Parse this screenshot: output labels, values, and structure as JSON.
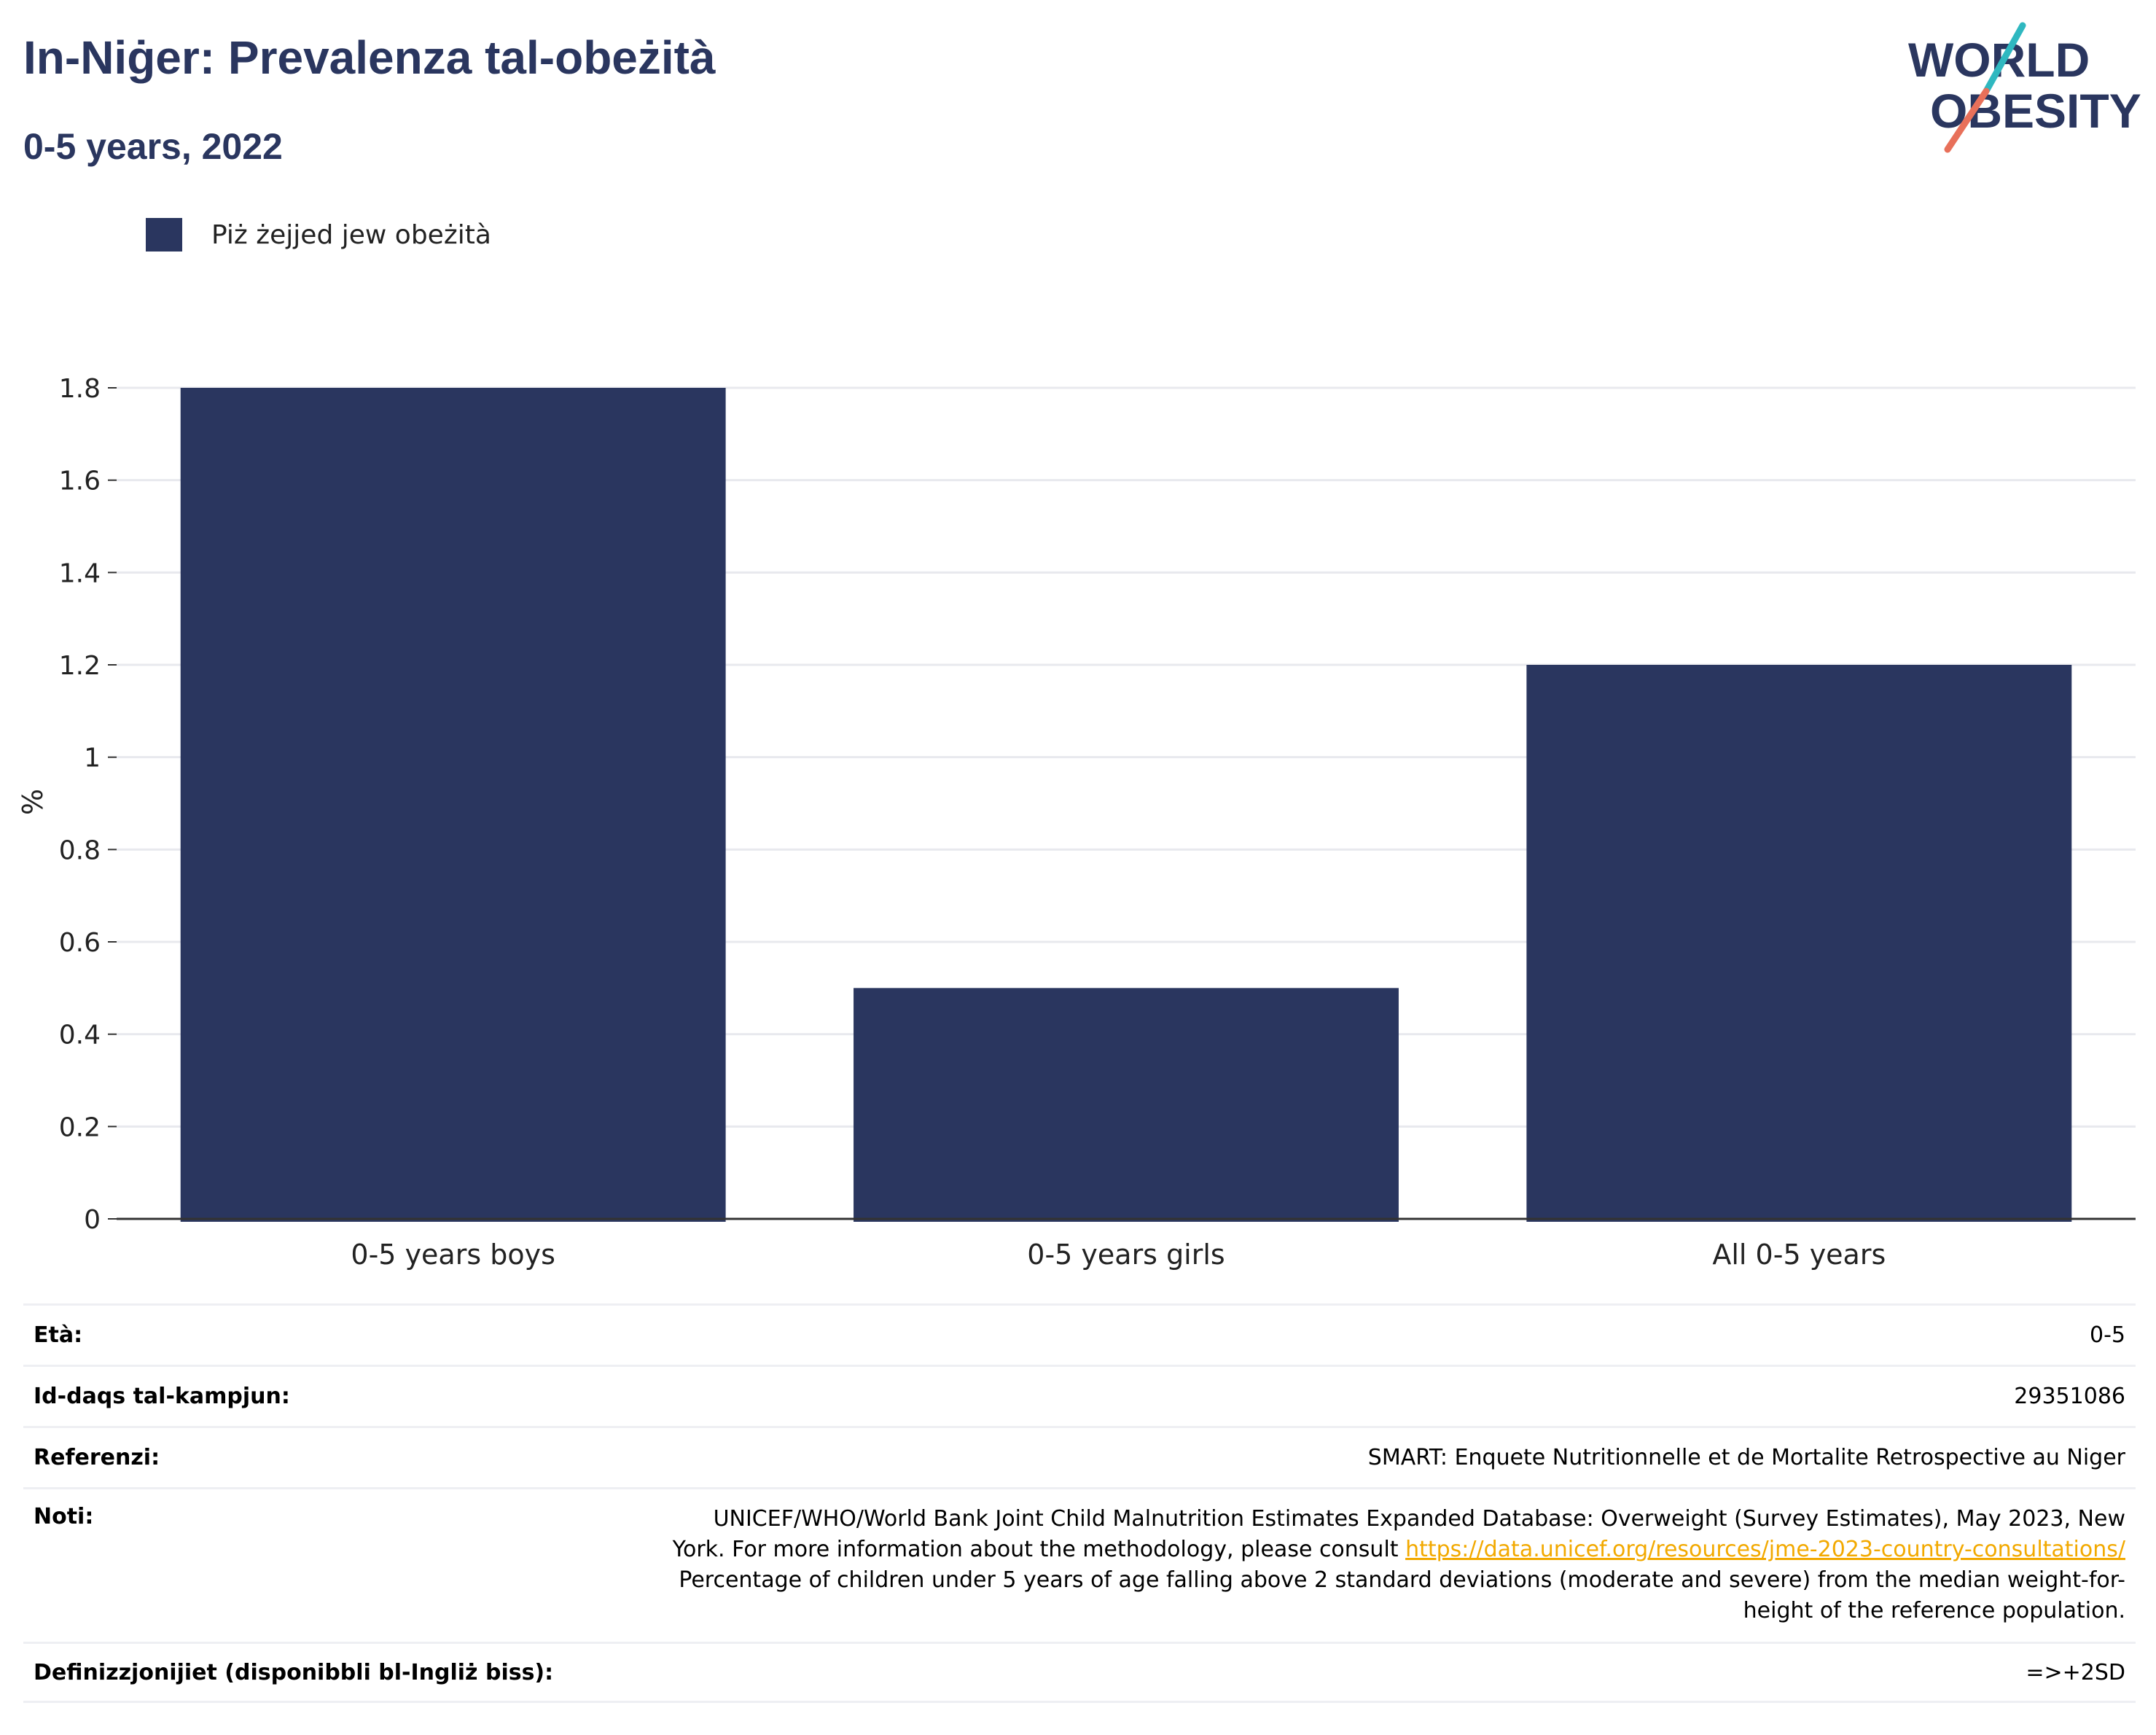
{
  "header": {
    "title": "In-Niġer: Prevalenza tal-obeżità",
    "subtitle": "0-5 years, 2022"
  },
  "logo": {
    "line1": "WORLD",
    "line2": "OBESITY",
    "accent_teal": "#2fb8c0",
    "accent_red": "#e8705a",
    "text_color": "#2a365f"
  },
  "legend": {
    "label": "Piż żejjed jew obeżità",
    "color": "#2a365f"
  },
  "chart_data": {
    "type": "bar",
    "categories": [
      "0-5 years boys",
      "0-5 years girls",
      "All 0-5 years"
    ],
    "series": [
      {
        "name": "Piż żejjed jew obeżità",
        "values": [
          1.8,
          0.5,
          1.2
        ],
        "color": "#2a365f"
      }
    ],
    "ylabel": "%",
    "xlabel": "",
    "ylim": [
      0,
      1.8
    ],
    "yticks": [
      0,
      0.2,
      0.4,
      0.6,
      0.8,
      1,
      1.2,
      1.4,
      1.6,
      1.8
    ],
    "ytick_labels": [
      "0",
      "0.2",
      "0.4",
      "0.6",
      "0.8",
      "1",
      "1.2",
      "1.4",
      "1.6",
      "1.8"
    ],
    "grid": true,
    "legend_position": "top-left"
  },
  "info": {
    "age_label": "Età:",
    "age_value": "0-5",
    "sample_label": "Id-daqs tal-kampjun:",
    "sample_value": "29351086",
    "refs_label": "Referenzi:",
    "refs_value": "SMART: Enquete Nutritionnelle et de Mortalite Retrospective au Niger",
    "notes_label": "Noti:",
    "notes_line1": "UNICEF/WHO/World Bank Joint Child Malnutrition Estimates Expanded Database: Overweight (Survey Estimates), May 2023, New",
    "notes_line2_pre": "York. For more information about the methodology, please consult ",
    "notes_link": "https://data.unicef.org/resources/jme-2023-country-consultations/",
    "notes_line3": "Percentage of children under 5 years of age falling above 2 standard deviations (moderate and severe) from the median weight-for-",
    "notes_line4": "height of the reference population.",
    "defs_label": "Definizzjonijiet (disponibbli bl-Ingliż biss):",
    "defs_value": "=>+2SD"
  }
}
